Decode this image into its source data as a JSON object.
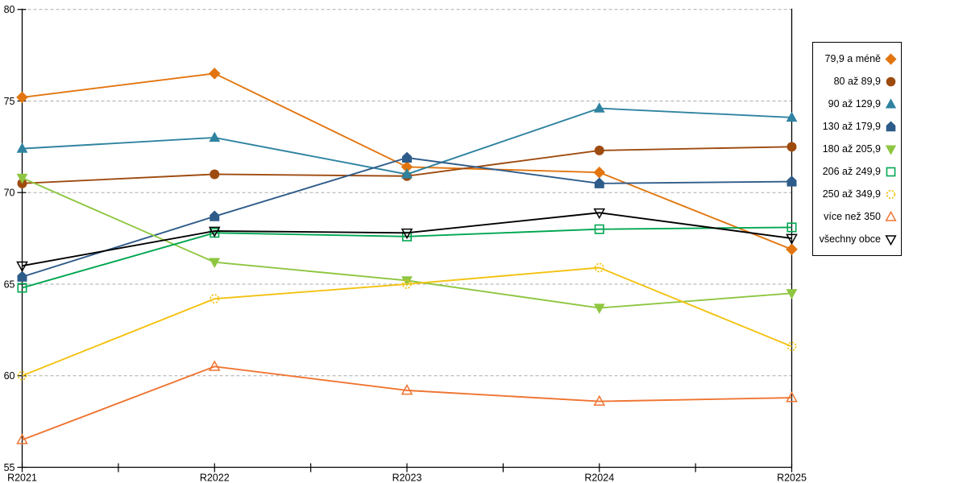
{
  "chart_data": {
    "type": "line",
    "title": "",
    "xlabel": "",
    "ylabel": "",
    "categories": [
      "R2021",
      "R2022",
      "R2023",
      "R2024",
      "R2025"
    ],
    "series": [
      {
        "name": "79,9 a méně",
        "color": "#E2750F",
        "marker": "diamond",
        "filled": true,
        "values": [
          75.2,
          76.5,
          71.4,
          71.1,
          66.9
        ]
      },
      {
        "name": "80 až 89,9",
        "color": "#9E4B10",
        "marker": "circle",
        "filled": true,
        "values": [
          70.5,
          71.0,
          70.9,
          72.3,
          72.5
        ]
      },
      {
        "name": "90 až 129,9",
        "color": "#2F83A0",
        "marker": "triangle-up",
        "filled": true,
        "values": [
          72.4,
          73.0,
          71.0,
          74.6,
          74.1
        ]
      },
      {
        "name": "130 až 179,9",
        "color": "#2E5C8A",
        "marker": "pentagon",
        "filled": true,
        "values": [
          65.4,
          68.7,
          71.9,
          70.5,
          70.6
        ]
      },
      {
        "name": "180 až 205,9",
        "color": "#8EC641",
        "marker": "triangle-down",
        "filled": true,
        "values": [
          70.8,
          66.2,
          65.2,
          63.7,
          64.5
        ]
      },
      {
        "name": "206 až 249,9",
        "color": "#00A651",
        "marker": "square",
        "filled": false,
        "values": [
          64.8,
          67.8,
          67.6,
          68.0,
          68.1
        ]
      },
      {
        "name": "250 až 349,9",
        "color": "#F2C211",
        "marker": "circle-dashed",
        "filled": false,
        "values": [
          60.0,
          64.2,
          65.0,
          65.9,
          61.6
        ]
      },
      {
        "name": "více než 350",
        "color": "#EF7532",
        "marker": "triangle-up",
        "filled": false,
        "values": [
          56.5,
          60.5,
          59.2,
          58.6,
          58.8
        ]
      },
      {
        "name": "všechny obce",
        "color": "#000000",
        "marker": "triangle-down",
        "filled": false,
        "values": [
          66.0,
          67.9,
          67.8,
          68.9,
          67.5
        ]
      }
    ],
    "ylim": [
      55,
      80
    ],
    "yticks": [
      80,
      75,
      70,
      65,
      60,
      55
    ],
    "grid": "horizontal-dashed",
    "legend_position": "right",
    "colors": {
      "gridline": "#ABABAB",
      "axis": "#000000",
      "background": "#FFFFFF"
    }
  }
}
